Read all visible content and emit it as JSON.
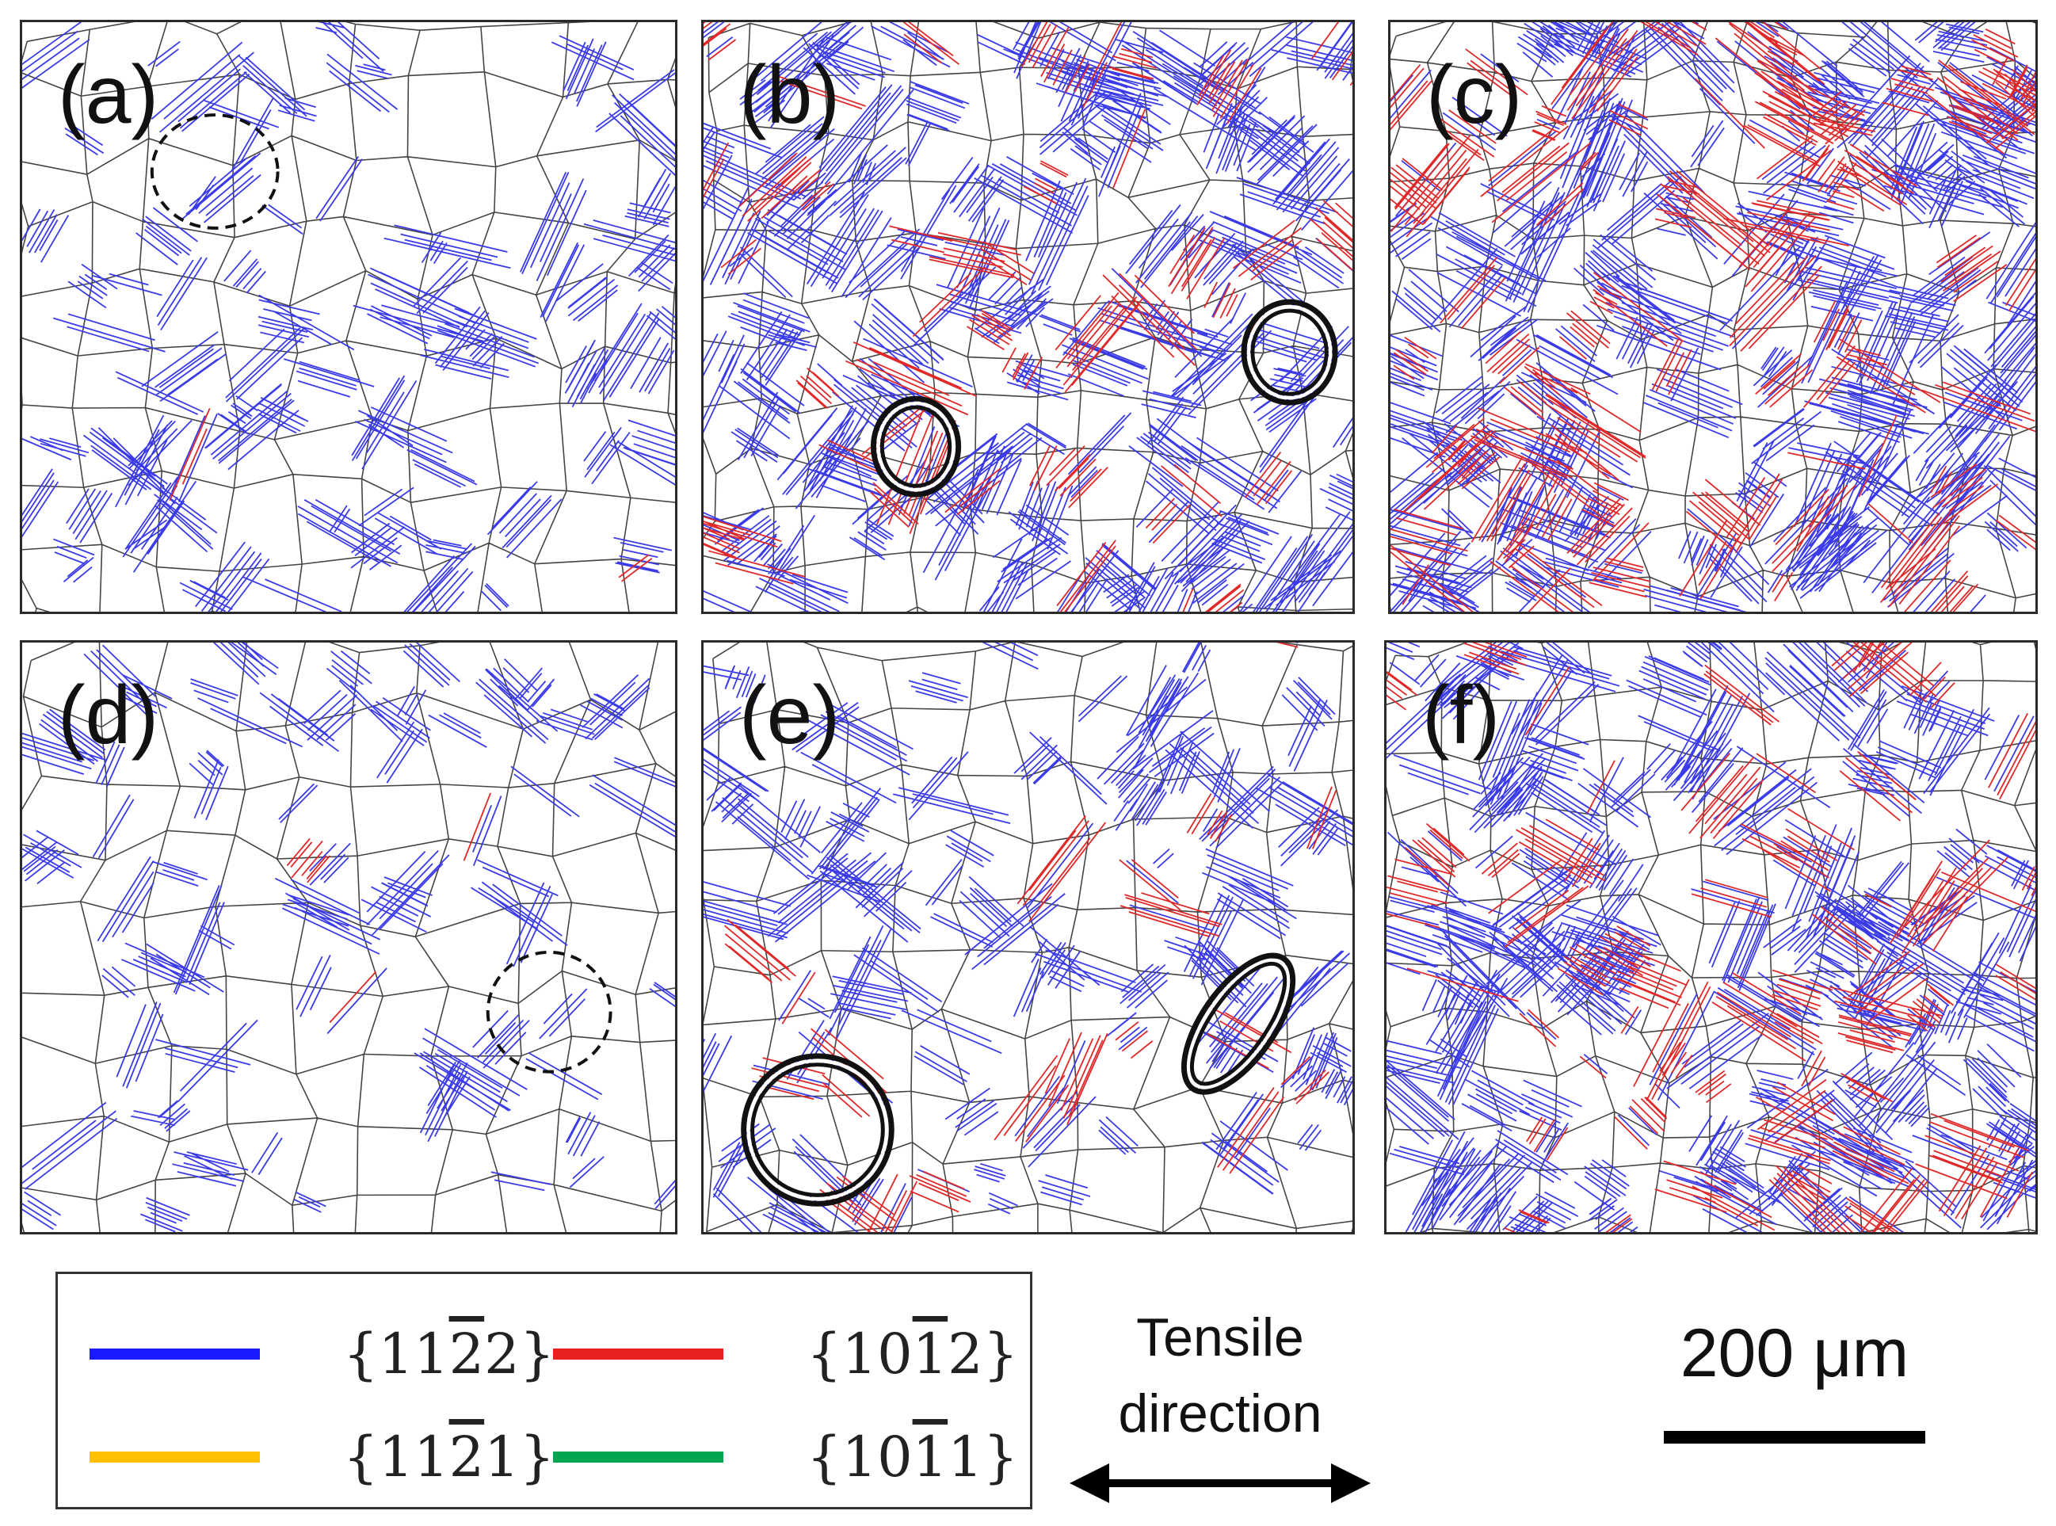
{
  "panels": [
    {
      "label": "(a)",
      "density": 0.35,
      "red_fraction": 0.05,
      "markers": [
        {
          "style": "dashed"
        }
      ]
    },
    {
      "label": "(b)",
      "density": 0.85,
      "red_fraction": 0.28,
      "markers": [
        {
          "style": "double-ring"
        },
        {
          "style": "double-ring"
        }
      ]
    },
    {
      "label": "(c)",
      "density": 1.0,
      "red_fraction": 0.4,
      "markers": []
    },
    {
      "label": "(d)",
      "density": 0.25,
      "red_fraction": 0.06,
      "markers": [
        {
          "style": "dashed"
        }
      ]
    },
    {
      "label": "(e)",
      "density": 0.45,
      "red_fraction": 0.18,
      "markers": [
        {
          "style": "double-ring"
        },
        {
          "style": "double-ring"
        }
      ]
    },
    {
      "label": "(f)",
      "density": 0.9,
      "red_fraction": 0.35,
      "markers": []
    }
  ],
  "legend": {
    "items": [
      {
        "pre": "{11",
        "bar": "2",
        "post": "2}",
        "color": "#1a1aff"
      },
      {
        "pre": "{10",
        "bar": "1",
        "post": "2}",
        "color": "#e8201e"
      },
      {
        "pre": "{11",
        "bar": "2",
        "post": "1}",
        "color": "#ffc000"
      },
      {
        "pre": "{10",
        "bar": "1",
        "post": "1}",
        "color": "#00a651"
      }
    ]
  },
  "direction": {
    "line1": "Tensile",
    "line2": "direction"
  },
  "scalebar": {
    "text": "200 μm"
  },
  "colors": {
    "grain_boundary": "#444444",
    "twin_blue": "#3a3ae8",
    "twin_red": "#e02828"
  }
}
